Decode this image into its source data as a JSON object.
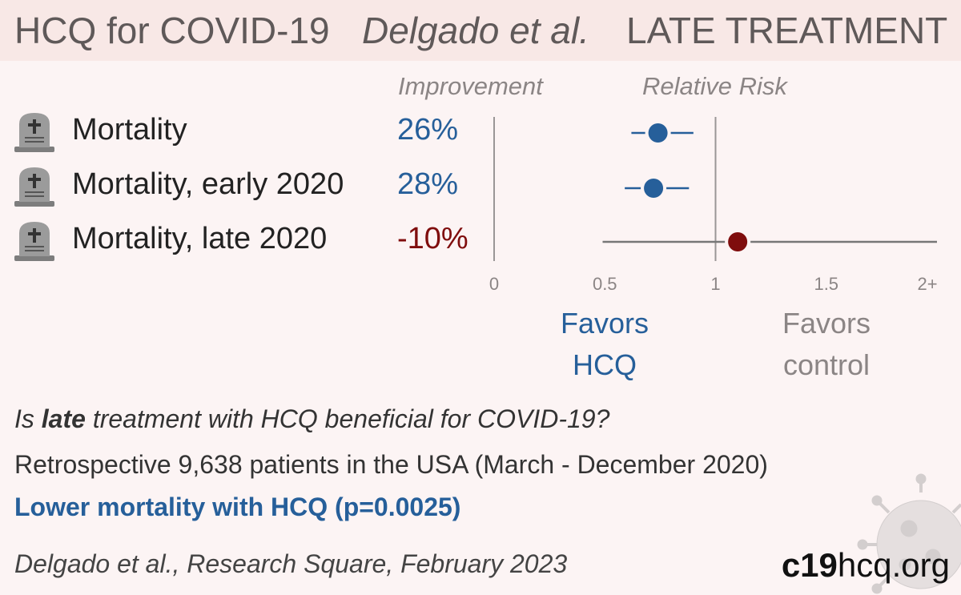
{
  "title": {
    "main": "HCQ for COVID-19",
    "author": "Delgado et al.",
    "stage": "LATE TREATMENT"
  },
  "headers": {
    "improvement": "Improvement",
    "relative_risk": "Relative Risk"
  },
  "rows": [
    {
      "label": "Mortality",
      "improvement": "26%",
      "icon": "tombstone-icon",
      "color": "#265f9a"
    },
    {
      "label": "Mortality, early 2020",
      "improvement": "28%",
      "icon": "tombstone-icon",
      "color": "#265f9a"
    },
    {
      "label": "Mortality, late 2020",
      "improvement": "-10%",
      "icon": "tombstone-icon",
      "color": "#7f0d0d"
    }
  ],
  "favors": {
    "hcq_line1": "Favors",
    "hcq_line2": "HCQ",
    "control_line1": "Favors",
    "control_line2": "control"
  },
  "summary": {
    "question_pre": "Is ",
    "question_bold": "late",
    "question_post": " treatment with HCQ beneficial for COVID-19?",
    "study": "Retrospective 9,638 patients in the USA (March - December 2020)",
    "result": "Lower mortality with HCQ (p=0.0025)",
    "citation": "Delgado et al., Research Square, February 2023"
  },
  "brand": {
    "bold": "c19",
    "rest": "hcq.org"
  },
  "colors": {
    "positive": "#265f9a",
    "negative": "#7f0d0d",
    "axis": "#9a9696",
    "title_bg": "#f8e8e6",
    "background": "#fcf4f4"
  },
  "chart_data": {
    "type": "forest",
    "x_ticks": [
      "0",
      "0.5",
      "1",
      "1.5",
      "2+"
    ],
    "xlim": [
      0,
      2
    ],
    "reference_line": 1,
    "series": [
      {
        "label": "Mortality",
        "rr": 0.74,
        "ci_low": 0.62,
        "ci_high": 0.9,
        "color": "#265f9a"
      },
      {
        "label": "Mortality, early 2020",
        "rr": 0.72,
        "ci_low": 0.59,
        "ci_high": 0.88,
        "color": "#265f9a"
      },
      {
        "label": "Mortality, late 2020",
        "rr": 1.1,
        "ci_low": 0.49,
        "ci_high": 2.0,
        "color": "#7f0d0d"
      }
    ]
  }
}
